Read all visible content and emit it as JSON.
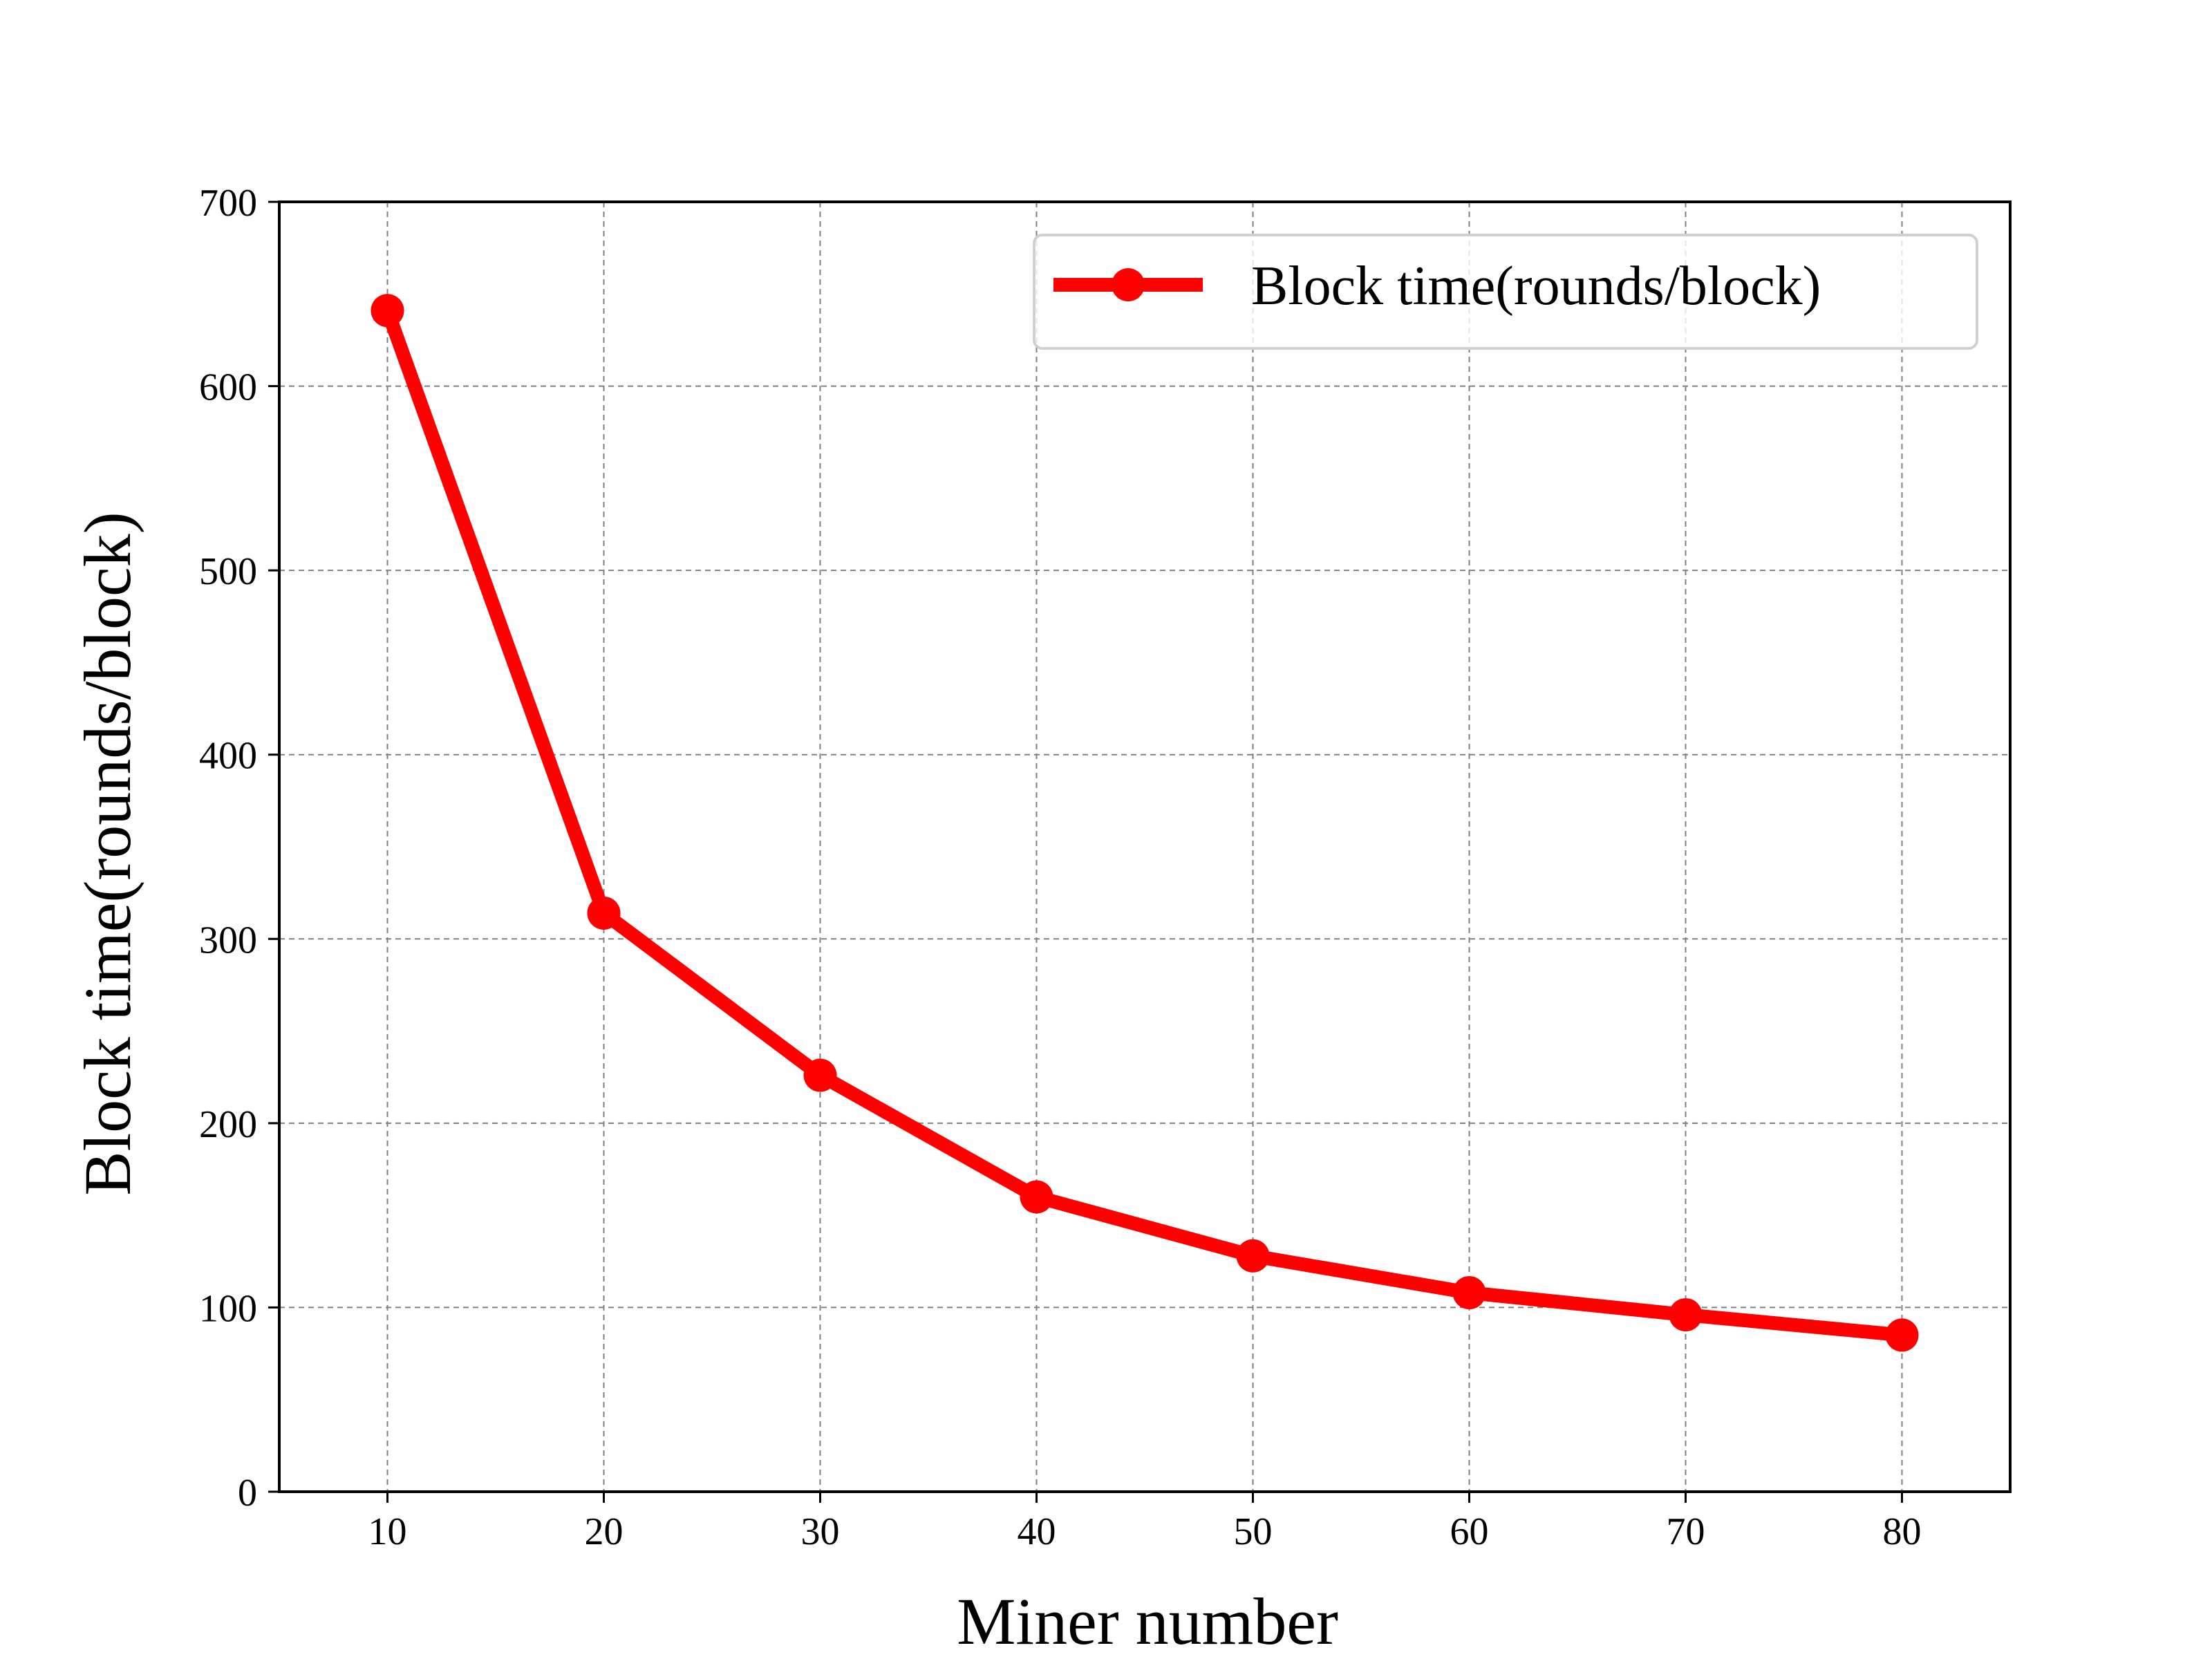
{
  "chart_data": {
    "type": "line",
    "title": "",
    "xlabel": "Miner number",
    "ylabel": "Block time(rounds/block)",
    "xlim": [
      5,
      85
    ],
    "ylim": [
      0,
      700
    ],
    "x_ticks": [
      10,
      20,
      30,
      40,
      50,
      60,
      70,
      80
    ],
    "y_ticks": [
      0,
      100,
      200,
      300,
      400,
      500,
      600,
      700
    ],
    "grid": true,
    "legend_position": "top-right",
    "series": [
      {
        "name": "Block time(rounds/block)",
        "color": "#ff0000",
        "marker": "circle",
        "x": [
          10,
          20,
          30,
          40,
          50,
          60,
          70,
          80
        ],
        "y": [
          641,
          314,
          226,
          160,
          128,
          108,
          96,
          85
        ]
      }
    ]
  }
}
